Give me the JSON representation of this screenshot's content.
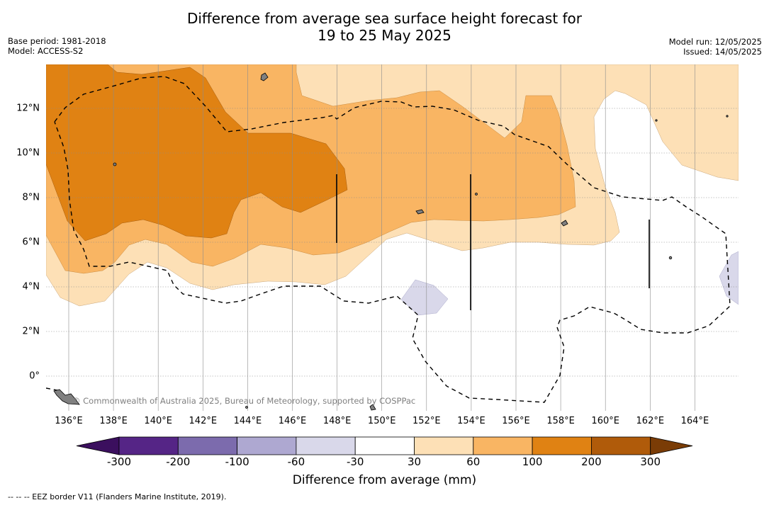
{
  "title_line1": "Difference from average sea surface height forecast for",
  "title_line2": "19 to 25 May 2025",
  "base_period": "Base period: 1981-2018",
  "model": "Model: ACCESS-S2",
  "model_run": "Model run: 12/05/2025",
  "issued": "Issued: 14/05/2025",
  "credit": "© Commonwealth of Australia 2025, Bureau of Meteorology, supported by COSPPac",
  "x_ticks": [
    "136°E",
    "138°E",
    "140°E",
    "142°E",
    "144°E",
    "146°E",
    "148°E",
    "150°E",
    "152°E",
    "154°E",
    "156°E",
    "158°E",
    "160°E",
    "162°E",
    "164°E"
  ],
  "y_ticks": [
    "12°N",
    "10°N",
    "8°N",
    "6°N",
    "4°N",
    "2°N",
    "0°"
  ],
  "colorbar": {
    "label": "Difference from average (mm)",
    "ticks": [
      "-300",
      "-200",
      "-100",
      "-60",
      "-30",
      "30",
      "60",
      "100",
      "200",
      "300"
    ],
    "colors": [
      "#3b0f5e",
      "#552586",
      "#7c6bad",
      "#aea8d1",
      "#d9d8ea",
      "#ffffff",
      "#fde0b6",
      "#f9b563",
      "#e08213",
      "#b05b0a",
      "#7a3c06"
    ]
  },
  "legend_footnote": "--  --  -- EEZ border V11 (Flanders Marine Institute, 2019).",
  "chart_data": {
    "type": "heatmap",
    "region": {
      "lon_range": [
        135,
        166
      ],
      "lat_range": [
        -1.5,
        14
      ]
    },
    "categories_mm": [
      "< -300",
      "-300 to -200",
      "-200 to -100",
      "-100 to -60",
      "-60 to -30",
      "-30 to 30",
      "30 to 60",
      "60 to 100",
      "100 to 200",
      "200 to 300",
      "> 300"
    ],
    "overlays": [
      "EEZ border (dashed)",
      "EEZ boundary lines (solid)",
      "land"
    ]
  }
}
